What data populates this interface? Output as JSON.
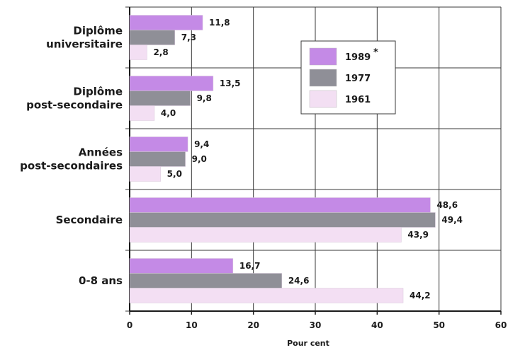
{
  "chart_data": {
    "type": "bar",
    "orientation": "horizontal",
    "categories": [
      [
        "Diplôme",
        "universitaire"
      ],
      [
        "Diplôme",
        "post-secondaire"
      ],
      [
        "Années",
        "post-secondaires"
      ],
      [
        "Secondaire"
      ],
      [
        "0-8 ans"
      ]
    ],
    "series": [
      {
        "name": "1989",
        "legend_mark": "*",
        "color": "#c48ae6",
        "values": [
          11.8,
          13.5,
          9.4,
          48.6,
          16.7
        ],
        "labels": [
          "11,8",
          "13,5",
          "9,4",
          "48,6",
          "16,7"
        ]
      },
      {
        "name": "1977",
        "color": "#8f8f97",
        "values": [
          7.3,
          9.8,
          9.0,
          49.4,
          24.6
        ],
        "labels": [
          "7,3",
          "9,8",
          "9,0",
          "49,4",
          "24,6"
        ]
      },
      {
        "name": "1961",
        "color": "#f3dff3",
        "values": [
          2.8,
          4.0,
          5.0,
          43.9,
          44.2
        ],
        "labels": [
          "2,8",
          "4,0",
          "5,0",
          "43,9",
          "44,2"
        ]
      }
    ],
    "xlim": [
      0,
      60
    ],
    "xticks": [
      "0",
      "10",
      "20",
      "30",
      "40",
      "50",
      "60"
    ],
    "xlabel": "Pour cent",
    "grid": true,
    "legend_position": "top-right"
  }
}
